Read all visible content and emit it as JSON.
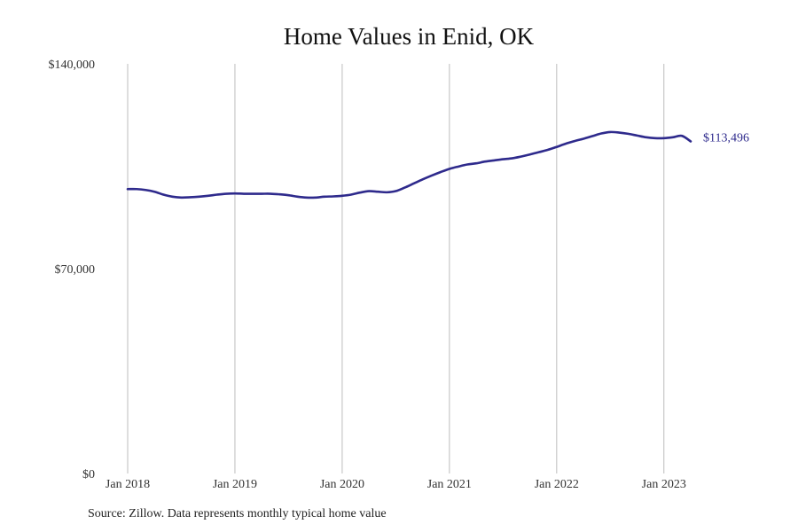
{
  "chart_data": {
    "type": "line",
    "title": "Home Values in Enid, OK",
    "xlabel": "",
    "ylabel": "",
    "source": "Source: Zillow. Data represents monthly typical home value",
    "ylim": [
      0,
      140000
    ],
    "xlim": [
      "2018-01",
      "2023-04"
    ],
    "y_ticks": [
      {
        "value": 0,
        "label": "$0"
      },
      {
        "value": 70000,
        "label": "$70,000"
      },
      {
        "value": 140000,
        "label": "$140,000"
      }
    ],
    "x_ticks": [
      {
        "value": "2018-01",
        "label": "Jan 2018"
      },
      {
        "value": "2019-01",
        "label": "Jan 2019"
      },
      {
        "value": "2020-01",
        "label": "Jan 2020"
      },
      {
        "value": "2021-01",
        "label": "Jan 2021"
      },
      {
        "value": "2022-01",
        "label": "Jan 2022"
      },
      {
        "value": "2023-01",
        "label": "Jan 2023"
      }
    ],
    "grid": {
      "vertical": true,
      "horizontal": false
    },
    "line_color": "#2e2a8c",
    "end_label": "$113,496",
    "series": [
      {
        "x": [
          "2018-01",
          "2018-02",
          "2018-03",
          "2018-04",
          "2018-05",
          "2018-06",
          "2018-07",
          "2018-08",
          "2018-09",
          "2018-10",
          "2018-11",
          "2018-12",
          "2019-01",
          "2019-02",
          "2019-03",
          "2019-04",
          "2019-05",
          "2019-06",
          "2019-07",
          "2019-08",
          "2019-09",
          "2019-10",
          "2019-11",
          "2019-12",
          "2020-01",
          "2020-02",
          "2020-03",
          "2020-04",
          "2020-05",
          "2020-06",
          "2020-07",
          "2020-08",
          "2020-09",
          "2020-10",
          "2020-11",
          "2020-12",
          "2021-01",
          "2021-02",
          "2021-03",
          "2021-04",
          "2021-05",
          "2021-06",
          "2021-07",
          "2021-08",
          "2021-09",
          "2021-10",
          "2021-11",
          "2021-12",
          "2022-01",
          "2022-02",
          "2022-03",
          "2022-04",
          "2022-05",
          "2022-06",
          "2022-07",
          "2022-08",
          "2022-09",
          "2022-10",
          "2022-11",
          "2022-12",
          "2023-01",
          "2023-02",
          "2023-03",
          "2023-04"
        ],
        "y": [
          97200,
          97200,
          96900,
          96300,
          95300,
          94600,
          94300,
          94400,
          94600,
          94900,
          95300,
          95600,
          95700,
          95600,
          95600,
          95600,
          95600,
          95400,
          95100,
          94600,
          94300,
          94300,
          94600,
          94700,
          94900,
          95300,
          96000,
          96500,
          96300,
          96100,
          96500,
          97700,
          99100,
          100500,
          101800,
          103000,
          104100,
          104900,
          105600,
          106000,
          106600,
          107000,
          107400,
          107700,
          108300,
          109000,
          109800,
          110600,
          111600,
          112700,
          113600,
          114400,
          115300,
          116200,
          116700,
          116500,
          116100,
          115500,
          114900,
          114600,
          114600,
          114900,
          115400,
          113496
        ]
      }
    ]
  }
}
